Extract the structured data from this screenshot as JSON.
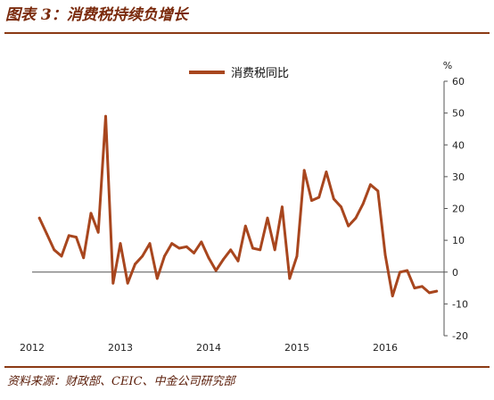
{
  "title": "图表 3：消费税持续负增长",
  "source": "资料来源：财政部、CEIC、中金公司研究部",
  "colors": {
    "series": "#a8461e",
    "title": "#7a2a0c",
    "rule": "#8b3a14"
  },
  "chart_data": {
    "type": "line",
    "title": "",
    "xlabel": "",
    "ylabel": "%",
    "xlim": [
      2012.0,
      2016.667
    ],
    "ylim": [
      -20,
      60
    ],
    "y_axis_side": "right",
    "y_ticks": [
      60,
      50,
      40,
      30,
      20,
      10,
      0,
      -10,
      -20
    ],
    "x_ticks": [
      2012,
      2013,
      2014,
      2015,
      2016
    ],
    "x_tick_labels": [
      "2012",
      "2013",
      "2014",
      "2015",
      "2016"
    ],
    "grid": false,
    "legend": {
      "position": "top-center",
      "entries": [
        "消费税同比"
      ]
    },
    "series": [
      {
        "name": "消费税同比",
        "x": [
          2012.083,
          2012.167,
          2012.25,
          2012.333,
          2012.417,
          2012.5,
          2012.583,
          2012.667,
          2012.75,
          2012.833,
          2012.917,
          2013.0,
          2013.083,
          2013.167,
          2013.25,
          2013.333,
          2013.417,
          2013.5,
          2013.583,
          2013.667,
          2013.75,
          2013.833,
          2013.917,
          2014.0,
          2014.083,
          2014.167,
          2014.25,
          2014.333,
          2014.417,
          2014.5,
          2014.583,
          2014.667,
          2014.75,
          2014.833,
          2014.917,
          2015.0,
          2015.083,
          2015.167,
          2015.25,
          2015.333,
          2015.417,
          2015.5,
          2015.583,
          2015.667,
          2015.75,
          2015.833,
          2015.917,
          2016.0,
          2016.083,
          2016.167,
          2016.25,
          2016.333,
          2016.417,
          2016.5,
          2016.583
        ],
        "values": [
          17,
          12,
          7,
          5,
          11.5,
          11,
          4.5,
          18.5,
          12.5,
          49,
          -3.5,
          9,
          -3.5,
          2.5,
          5,
          9,
          -2,
          5,
          9,
          7.5,
          8,
          6,
          9.5,
          4.5,
          0.5,
          4,
          7,
          3.5,
          14.5,
          7.5,
          7,
          17,
          7,
          20.5,
          -2,
          5,
          32,
          22.5,
          23.5,
          31.5,
          23,
          20.5,
          14.5,
          17,
          21.5,
          27.5,
          25.5,
          5.5,
          -7.5,
          0,
          0.5,
          -5,
          -4.5,
          -6.5,
          -6
        ]
      }
    ]
  }
}
